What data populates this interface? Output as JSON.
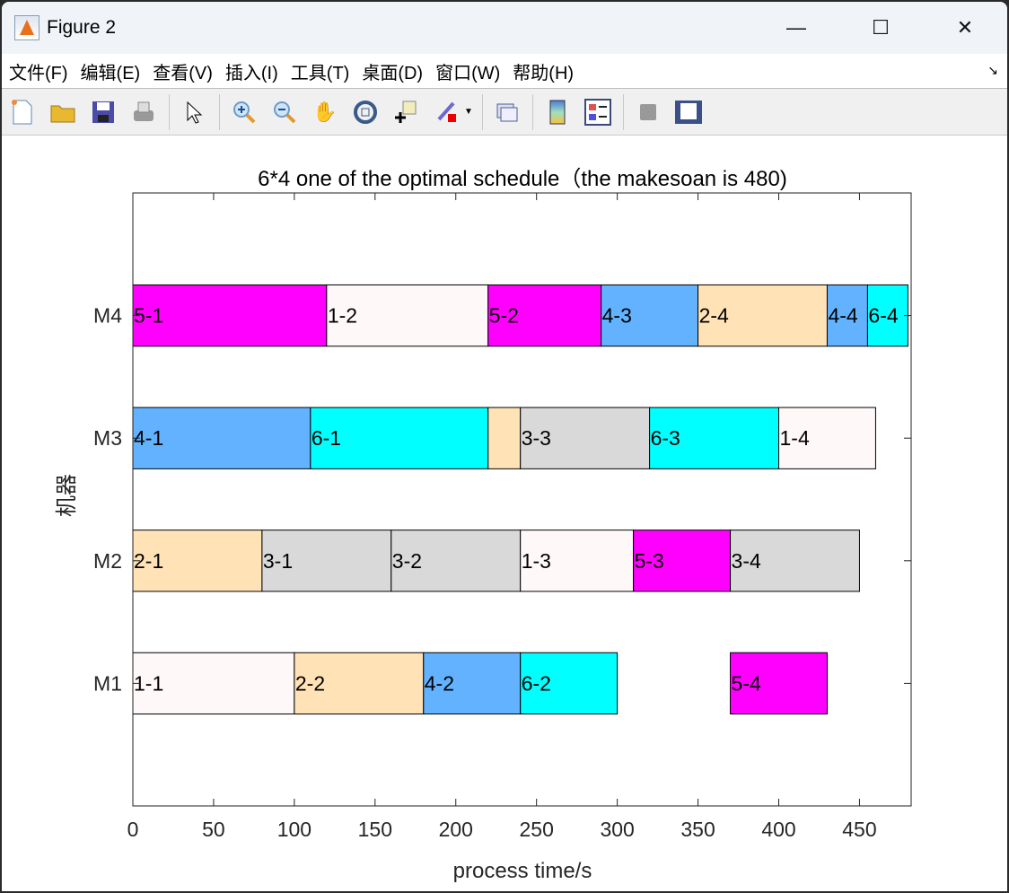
{
  "window": {
    "title": "Figure 2"
  },
  "menu": [
    "文件(F)",
    "编辑(E)",
    "查看(V)",
    "插入(I)",
    "工具(T)",
    "桌面(D)",
    "窗口(W)",
    "帮助(H)"
  ],
  "toolbar": [
    "new-file",
    "open-folder",
    "save",
    "print",
    "pointer",
    "zoom-in",
    "zoom-out",
    "pan",
    "rotate-3d",
    "data-cursor",
    "brush",
    "link-plot",
    "colorbar",
    "legend",
    "hide-plot-tools",
    "show-plot-tools"
  ],
  "colors": {
    "job1": "#fff8f8",
    "job2": "#ffe2b6",
    "job3": "#d9d9d9",
    "job4": "#62b2ff",
    "job5": "#ff00ff",
    "job6": "#00ffff"
  },
  "chart_data": {
    "type": "gantt",
    "title": "6*4 one of the optimal schedule（the makesoan is 480)",
    "xlabel": "process time/s",
    "ylabel": "机器",
    "xlim": [
      0,
      482
    ],
    "ylim": [
      0,
      5
    ],
    "xticks": [
      0,
      50,
      100,
      150,
      200,
      250,
      300,
      350,
      400,
      450
    ],
    "yticks": [
      {
        "value": 1,
        "label": "M1"
      },
      {
        "value": 2,
        "label": "M2"
      },
      {
        "value": 3,
        "label": "M3"
      },
      {
        "value": 4,
        "label": "M4"
      }
    ],
    "tasks": [
      {
        "machine": 4,
        "job": 5,
        "label": "5-1",
        "start": 0,
        "end": 120
      },
      {
        "machine": 4,
        "job": 1,
        "label": "1-2",
        "start": 120,
        "end": 220
      },
      {
        "machine": 4,
        "job": 5,
        "label": "5-2",
        "start": 220,
        "end": 290
      },
      {
        "machine": 4,
        "job": 4,
        "label": "4-3",
        "start": 290,
        "end": 350
      },
      {
        "machine": 4,
        "job": 2,
        "label": "2-4",
        "start": 350,
        "end": 430
      },
      {
        "machine": 4,
        "job": 4,
        "label": "4-4",
        "start": 430,
        "end": 455
      },
      {
        "machine": 4,
        "job": 6,
        "label": "6-4",
        "start": 455,
        "end": 480
      },
      {
        "machine": 3,
        "job": 4,
        "label": "4-1",
        "start": 0,
        "end": 110
      },
      {
        "machine": 3,
        "job": 6,
        "label": "6-1",
        "start": 110,
        "end": 220
      },
      {
        "machine": 3,
        "job": 2,
        "label": "",
        "start": 220,
        "end": 240
      },
      {
        "machine": 3,
        "job": 3,
        "label": "3-3",
        "start": 240,
        "end": 320
      },
      {
        "machine": 3,
        "job": 6,
        "label": "6-3",
        "start": 320,
        "end": 400
      },
      {
        "machine": 3,
        "job": 1,
        "label": "1-4",
        "start": 400,
        "end": 460
      },
      {
        "machine": 2,
        "job": 2,
        "label": "2-1",
        "start": 0,
        "end": 80
      },
      {
        "machine": 2,
        "job": 3,
        "label": "3-1",
        "start": 80,
        "end": 160
      },
      {
        "machine": 2,
        "job": 3,
        "label": "3-2",
        "start": 160,
        "end": 240
      },
      {
        "machine": 2,
        "job": 1,
        "label": "1-3",
        "start": 240,
        "end": 310
      },
      {
        "machine": 2,
        "job": 5,
        "label": "5-3",
        "start": 310,
        "end": 370
      },
      {
        "machine": 2,
        "job": 3,
        "label": "3-4",
        "start": 370,
        "end": 450
      },
      {
        "machine": 1,
        "job": 1,
        "label": "1-1",
        "start": 0,
        "end": 100
      },
      {
        "machine": 1,
        "job": 2,
        "label": "2-2",
        "start": 100,
        "end": 180
      },
      {
        "machine": 1,
        "job": 4,
        "label": "4-2",
        "start": 180,
        "end": 240
      },
      {
        "machine": 1,
        "job": 6,
        "label": "6-2",
        "start": 240,
        "end": 300
      },
      {
        "machine": 1,
        "job": 5,
        "label": "5-4",
        "start": 370,
        "end": 430
      }
    ]
  }
}
